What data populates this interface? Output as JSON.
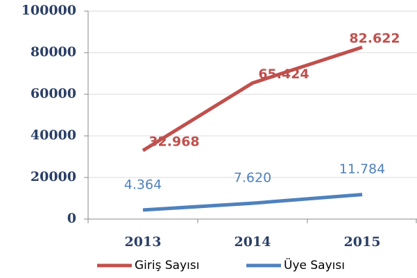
{
  "chart_data": {
    "type": "line",
    "categories": [
      "2013",
      "2014",
      "2015"
    ],
    "series": [
      {
        "name": "Giriş Sayısı",
        "color": "#c0504d",
        "values": [
          32968,
          65424,
          82622
        ],
        "value_labels": [
          "32.968",
          "65.424",
          "82.622"
        ]
      },
      {
        "name": "Üye Sayısı",
        "color": "#4f81bd",
        "values": [
          4364,
          7620,
          11784
        ],
        "value_labels": [
          "4.364",
          "7.620",
          "11.784"
        ]
      }
    ],
    "ylim": [
      0,
      100000
    ],
    "yticks": [
      0,
      20000,
      40000,
      60000,
      80000,
      100000
    ],
    "grid": true,
    "legend": "bottom"
  }
}
